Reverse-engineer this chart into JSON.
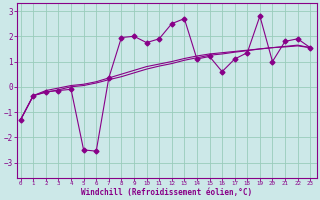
{
  "xlabel": "Windchill (Refroidissement éolien,°C)",
  "background_color": "#cce8e8",
  "grid_color": "#99ccbb",
  "line_color": "#880088",
  "x_ticks": [
    0,
    1,
    2,
    3,
    4,
    5,
    6,
    7,
    8,
    9,
    10,
    11,
    12,
    13,
    14,
    15,
    16,
    17,
    18,
    19,
    20,
    21,
    22,
    23
  ],
  "y_ticks": [
    -3,
    -2,
    -1,
    0,
    1,
    2,
    3
  ],
  "ylim": [
    -3.6,
    3.3
  ],
  "xlim": [
    -0.3,
    23.5
  ],
  "series_jagged_x": [
    0,
    1,
    2,
    3,
    4,
    5,
    6,
    7,
    8,
    9,
    10,
    11,
    12,
    13,
    14,
    15,
    16,
    17,
    18,
    19,
    20,
    21,
    22,
    23
  ],
  "series_jagged_y": [
    -1.3,
    -0.35,
    -0.2,
    -0.15,
    -0.1,
    -2.5,
    -2.55,
    0.35,
    1.95,
    2.0,
    1.75,
    1.9,
    2.5,
    2.7,
    1.1,
    1.2,
    0.6,
    1.1,
    1.35,
    2.8,
    1.0,
    1.8,
    1.9,
    1.55
  ],
  "series_smooth1_x": [
    0,
    1,
    2,
    3,
    4,
    5,
    6,
    7,
    8,
    9,
    10,
    11,
    12,
    13,
    14,
    15,
    16,
    17,
    18,
    19,
    20,
    21,
    22,
    23
  ],
  "series_smooth1_y": [
    -1.3,
    -0.35,
    -0.15,
    -0.05,
    0.05,
    0.1,
    0.2,
    0.35,
    0.5,
    0.65,
    0.8,
    0.9,
    1.0,
    1.12,
    1.22,
    1.3,
    1.35,
    1.4,
    1.45,
    1.5,
    1.55,
    1.58,
    1.62,
    1.55
  ],
  "series_smooth2_x": [
    0,
    1,
    2,
    3,
    4,
    5,
    6,
    7,
    8,
    9,
    10,
    11,
    12,
    13,
    14,
    15,
    16,
    17,
    18,
    19,
    20,
    21,
    22,
    23
  ],
  "series_smooth2_y": [
    -1.3,
    -0.35,
    -0.22,
    -0.12,
    0.0,
    0.05,
    0.15,
    0.28,
    0.4,
    0.55,
    0.7,
    0.82,
    0.92,
    1.05,
    1.15,
    1.25,
    1.3,
    1.37,
    1.43,
    1.5,
    1.55,
    1.6,
    1.65,
    1.55
  ]
}
